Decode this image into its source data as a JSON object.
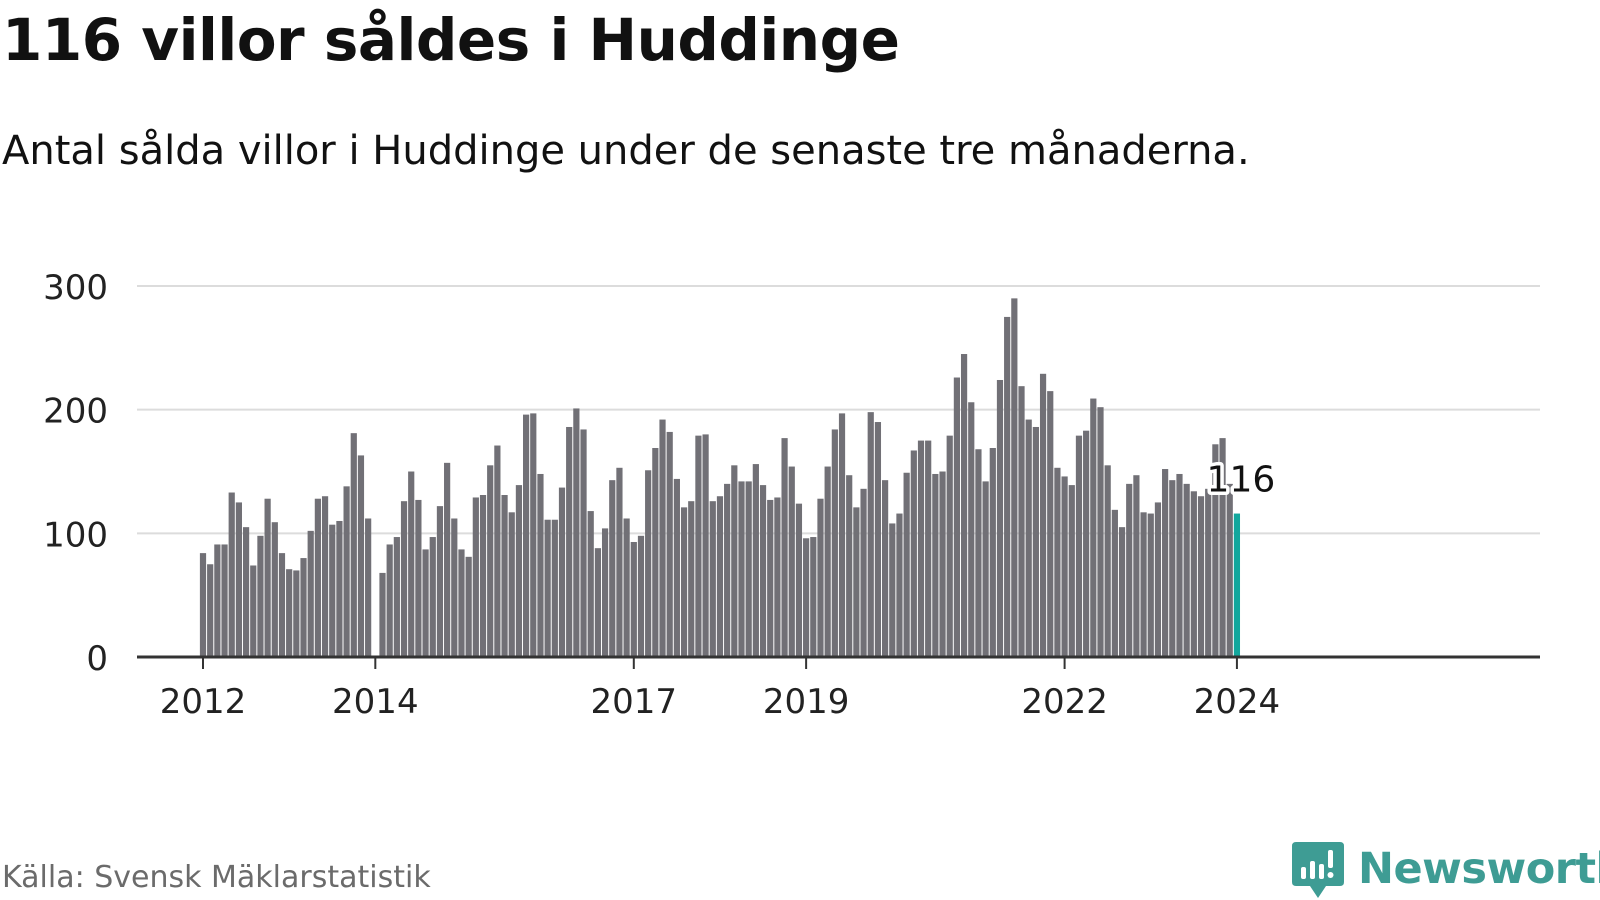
{
  "title": "116 villor såldes i Huddinge",
  "subtitle": "Antal sålda villor i Huddinge under de senaste tre månaderna.",
  "source": "Källa: Svensk Mäklarstatistik",
  "brand": {
    "name": "Newsworthy",
    "color": "#3e9c94"
  },
  "colors": {
    "bar": "#717076",
    "highlight": "#12a79d",
    "grid": "#dcdcdc",
    "axis": "#333333",
    "text": "#222222"
  },
  "chart_data": {
    "type": "bar",
    "title": "116 villor såldes i Huddinge",
    "subtitle": "Antal sålda villor i Huddinge under de senaste tre månaderna.",
    "xlabel": "",
    "ylabel": "",
    "ylim": [
      0,
      300
    ],
    "yticks": [
      0,
      100,
      200,
      300
    ],
    "grid": true,
    "start": "2012-01",
    "end": "2024-01",
    "xticks": [
      {
        "label": "2012",
        "index": 0
      },
      {
        "label": "2014",
        "index": 24
      },
      {
        "label": "2017",
        "index": 60
      },
      {
        "label": "2019",
        "index": 84
      },
      {
        "label": "2022",
        "index": 120
      },
      {
        "label": "2024",
        "index": 144
      }
    ],
    "highlight_index": 144,
    "annotation": {
      "index": 144,
      "value": 116,
      "label": "116"
    },
    "values": [
      84,
      75,
      91,
      91,
      133,
      125,
      105,
      74,
      98,
      128,
      109,
      84,
      71,
      70,
      80,
      102,
      128,
      130,
      107,
      110,
      138,
      181,
      163,
      112,
      null,
      68,
      91,
      97,
      126,
      150,
      127,
      87,
      97,
      122,
      157,
      112,
      87,
      81,
      129,
      131,
      155,
      171,
      131,
      117,
      139,
      196,
      197,
      148,
      111,
      111,
      137,
      186,
      201,
      184,
      118,
      88,
      104,
      143,
      153,
      112,
      93,
      98,
      151,
      169,
      192,
      182,
      144,
      121,
      126,
      179,
      180,
      126,
      130,
      140,
      155,
      142,
      142,
      156,
      139,
      127,
      129,
      177,
      154,
      124,
      96,
      97,
      128,
      154,
      184,
      197,
      147,
      121,
      136,
      198,
      190,
      143,
      108,
      116,
      149,
      167,
      175,
      175,
      148,
      150,
      179,
      226,
      245,
      206,
      168,
      142,
      169,
      224,
      275,
      290,
      219,
      192,
      186,
      229,
      215,
      153,
      146,
      139,
      179,
      183,
      209,
      202,
      155,
      119,
      105,
      140,
      147,
      117,
      116,
      125,
      152,
      143,
      148,
      140,
      134,
      130,
      136,
      172,
      177,
      140,
      116
    ]
  }
}
